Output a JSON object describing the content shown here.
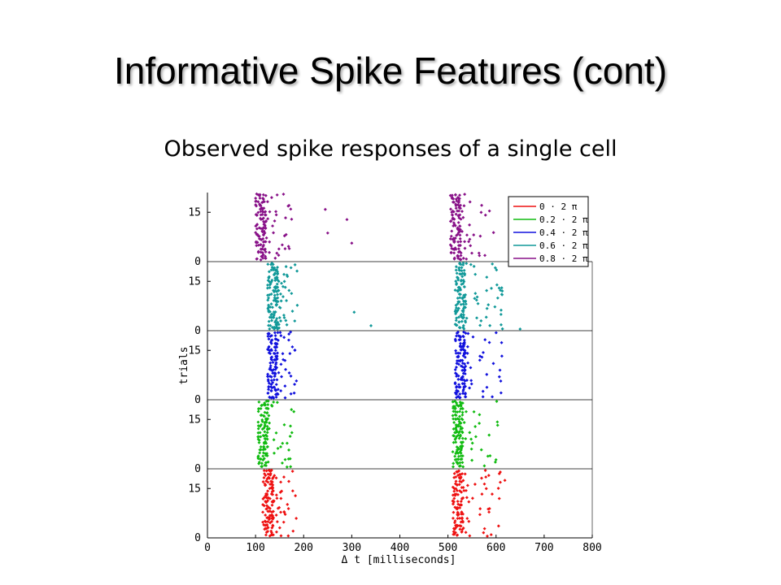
{
  "slide": {
    "title": "Informative Spike Features (cont)",
    "subtitle": "Observed spike responses of a single cell"
  },
  "chart_data": {
    "type": "scatter",
    "chart_kind": "spike-raster",
    "xlabel": "Δ t [milliseconds]",
    "ylabel": "trials",
    "xlim": [
      0,
      800
    ],
    "x_ticks": [
      0,
      100,
      200,
      300,
      400,
      500,
      600,
      700,
      800
    ],
    "panel_y_ticks": [
      "0",
      "15"
    ],
    "trials_per_panel": 20,
    "legend_position": "top-right",
    "series": [
      {
        "name": "0 · 2 π",
        "color": "#ee1111",
        "bursts": [
          [
            115,
            185
          ],
          [
            510,
            620
          ]
        ],
        "density": [
          0.55,
          0.6
        ],
        "outliers": []
      },
      {
        "name": "0.2 · 2 π",
        "color": "#11bb11",
        "bursts": [
          [
            105,
            180
          ],
          [
            510,
            610
          ]
        ],
        "density": [
          0.6,
          0.6
        ],
        "outliers": []
      },
      {
        "name": "0.4 · 2 π",
        "color": "#1111dd",
        "bursts": [
          [
            125,
            185
          ],
          [
            515,
            615
          ]
        ],
        "density": [
          0.6,
          0.6
        ],
        "outliers": []
      },
      {
        "name": "0.6 · 2 π",
        "color": "#119999",
        "bursts": [
          [
            125,
            190
          ],
          [
            515,
            615
          ]
        ],
        "density": [
          0.6,
          0.6
        ],
        "outliers": [
          [
            305,
            5
          ],
          [
            340,
            1
          ],
          [
            650,
            0
          ]
        ]
      },
      {
        "name": "0.8 · 2 π",
        "color": "#881188",
        "bursts": [
          [
            100,
            175
          ],
          [
            505,
            605
          ]
        ],
        "density": [
          0.6,
          0.55
        ],
        "outliers": [
          [
            245,
            15
          ],
          [
            290,
            12
          ],
          [
            250,
            8
          ],
          [
            300,
            5
          ]
        ]
      }
    ]
  }
}
